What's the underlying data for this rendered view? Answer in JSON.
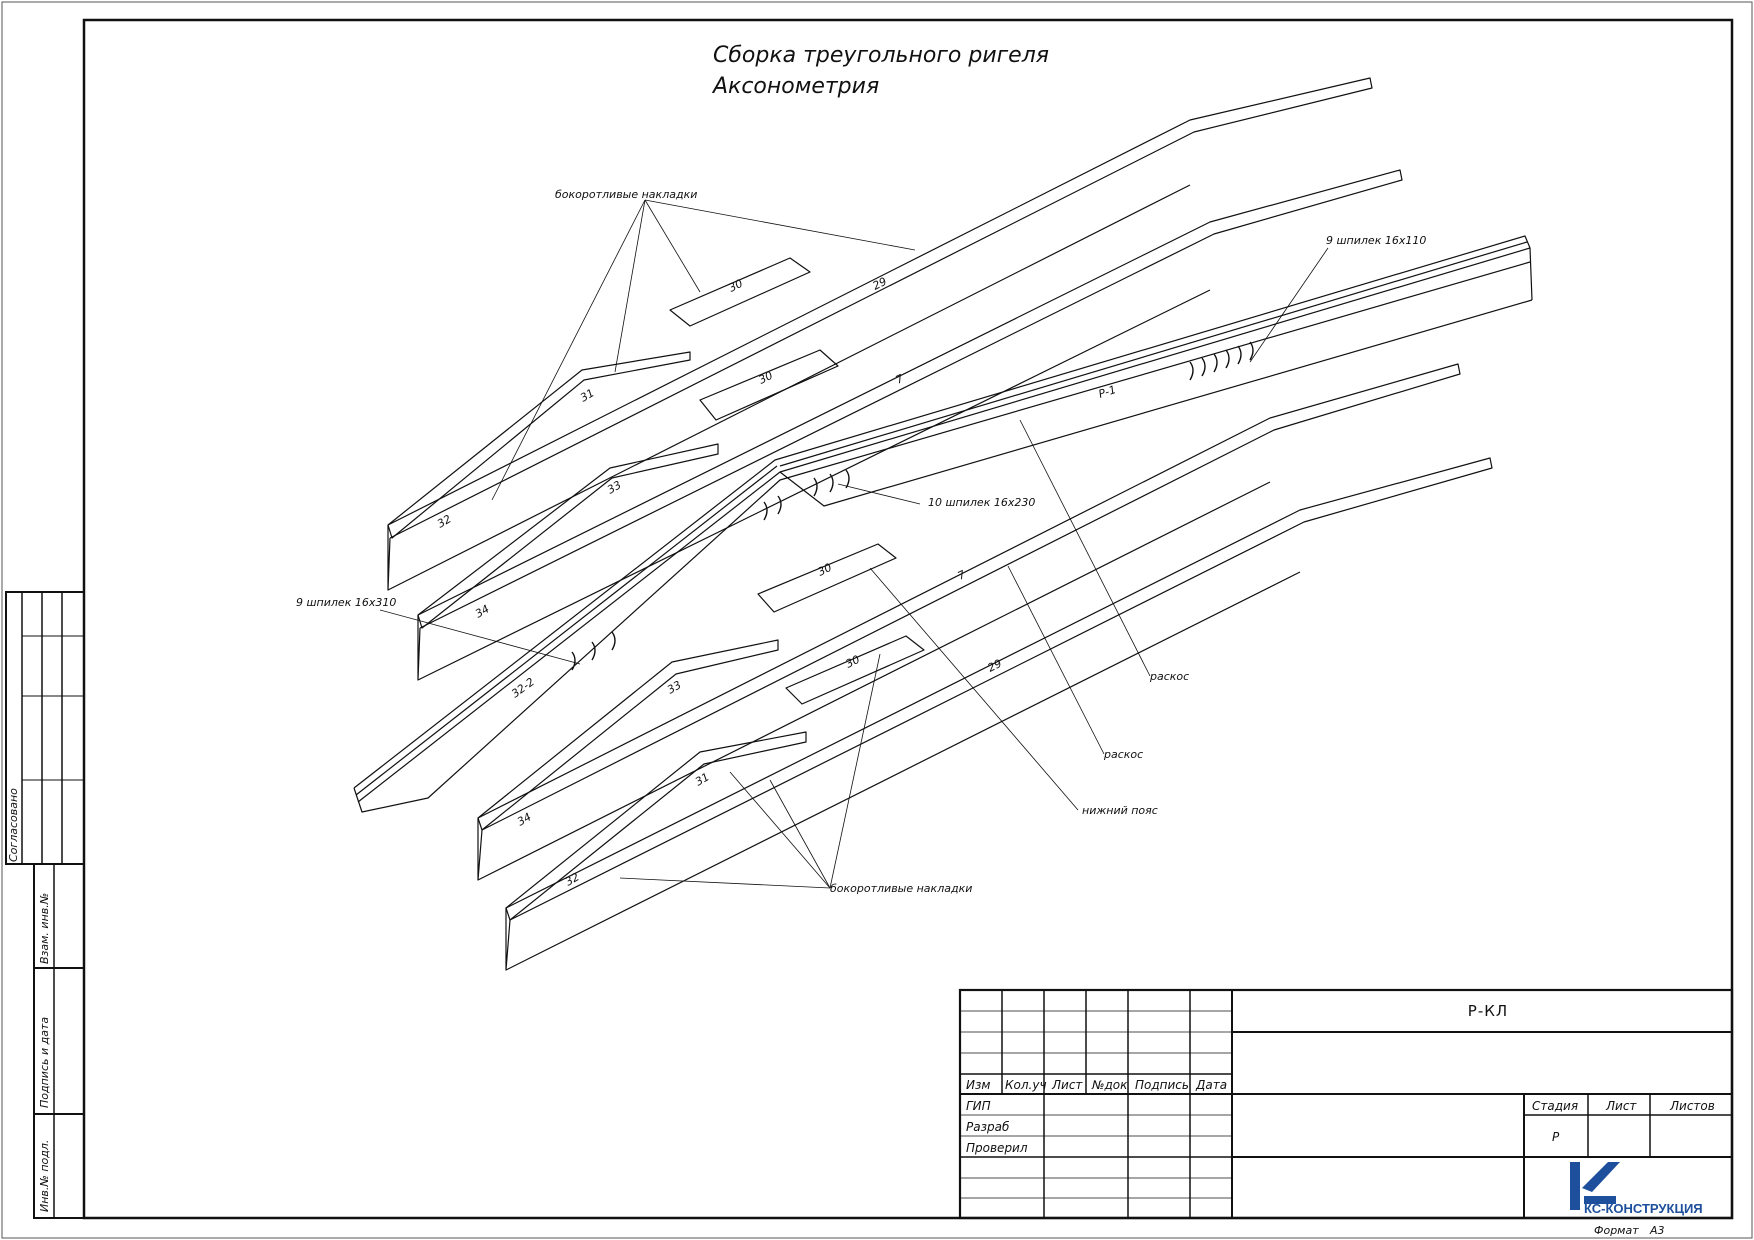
{
  "drawing": {
    "title_line1": "Сборка треугольного ригеля",
    "title_line2": "Аксонометрия"
  },
  "callouts": {
    "top_pads": "бокоротливые накладки",
    "bottom_pads": "бокоротливые накладки",
    "bolts_right": "9 шпилек 16х110",
    "bolts_left": "9 шпилек 16х310",
    "bolts_center": "10 шпилек 16х230",
    "detail_1": "раскос",
    "detail_2": "раскос",
    "detail_3": "нижний пояс"
  },
  "part_numbers": {
    "p29a": "29",
    "p29b": "29",
    "p30a": "30",
    "p30b": "30",
    "p30c": "30",
    "p30d": "30",
    "p31a": "31",
    "p31b": "31",
    "p32a": "32",
    "p32b": "32",
    "p33a": "33",
    "p33b": "33",
    "p34a": "34",
    "p34b": "34",
    "p7a": "7",
    "p7b": "7",
    "p7c": "7",
    "pr1": "Р-1",
    "p32c": "32-2"
  },
  "side_stamp": {
    "agreed": "Согласовано",
    "inv_replaced": "Взам. инв.№",
    "sign_date": "Подпись и дата",
    "inv_orig": "Инв.№ подл."
  },
  "title_block": {
    "code": "Р-КЛ",
    "headers": {
      "change": "Изм",
      "count": "Кол.уч",
      "sheet": "Лист",
      "doc": "№док",
      "sign": "Подпись",
      "date": "Дата"
    },
    "roles": [
      "ГИП",
      "Разраб",
      "Проверил"
    ],
    "stage_header": "Стадия",
    "sheet_header": "Лист",
    "sheets_header": "Листов",
    "stage_value": "Р",
    "company": "КС-КОНСТРУКЦИЯ",
    "format_label": "Формат",
    "format_value": "А3"
  },
  "colors": {
    "line": "#111111",
    "logo": "#1d4f9c"
  }
}
